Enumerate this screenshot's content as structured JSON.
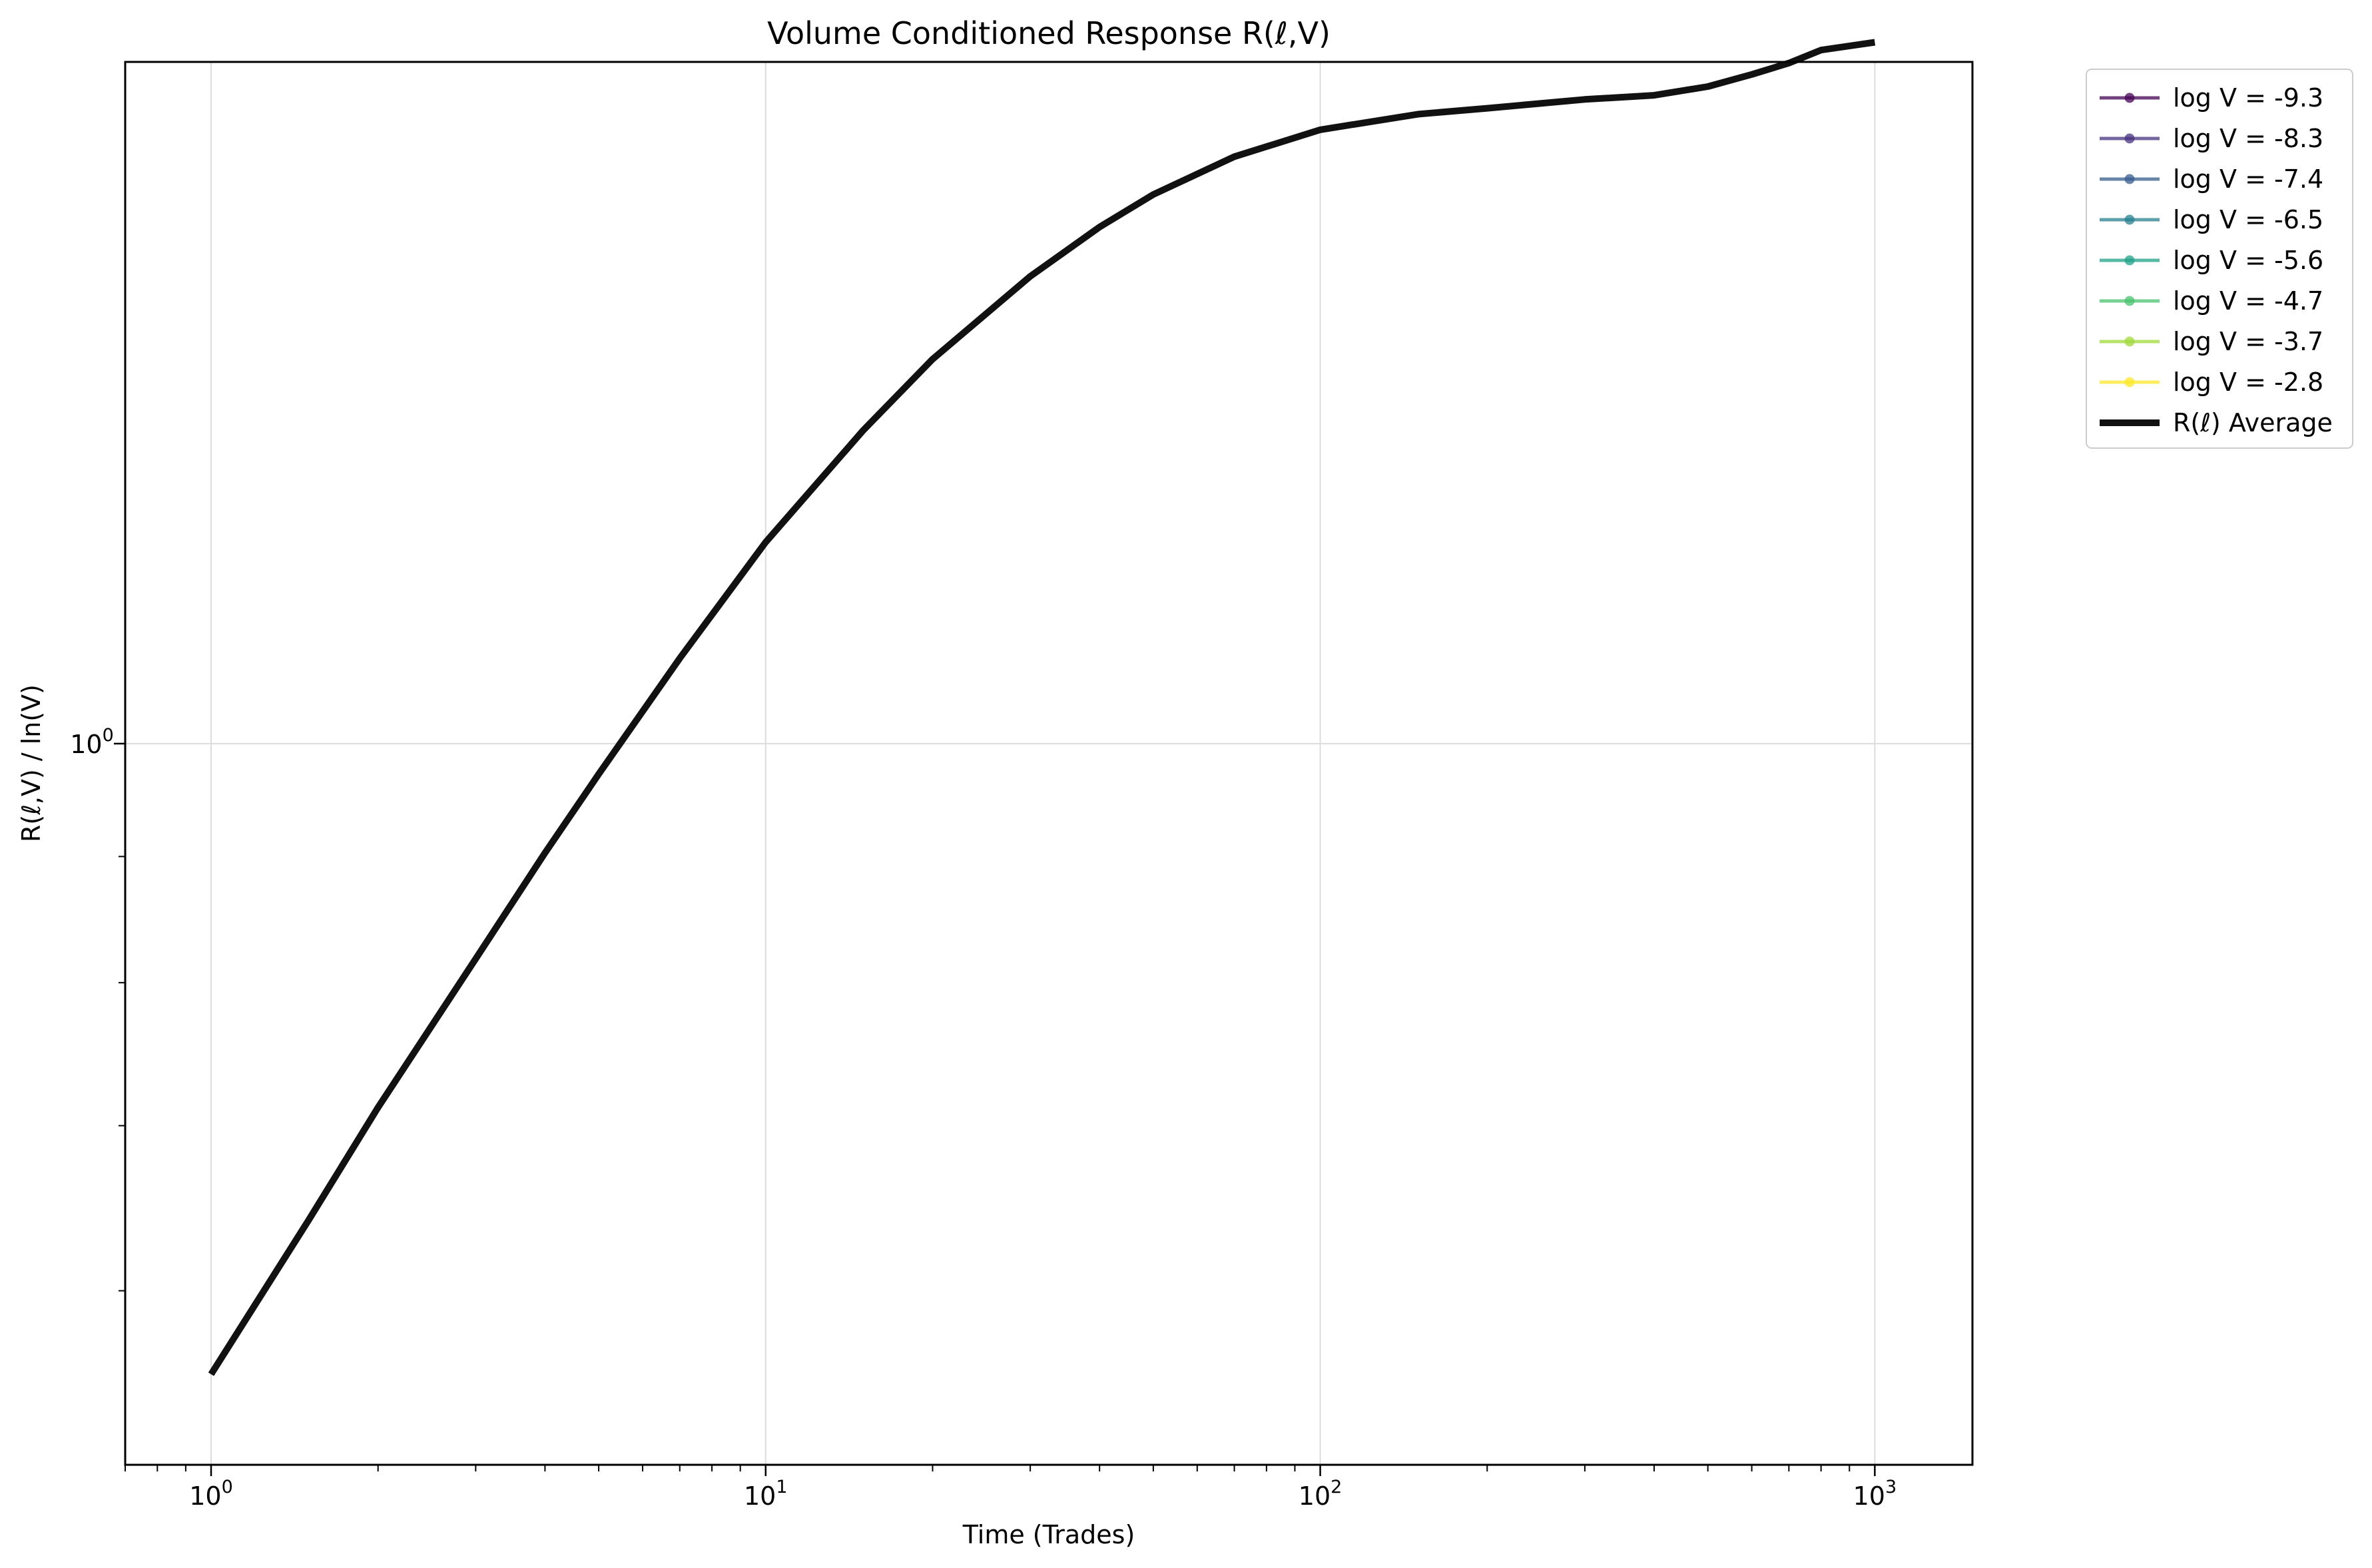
{
  "chart_data": {
    "type": "line",
    "title": "Volume Conditioned Response R(ℓ,V)",
    "xlabel": "Time (Trades)",
    "ylabel": "R(ℓ,V) / ln(V)",
    "xscale": "log",
    "yscale": "log",
    "xlim": [
      0.7,
      1500
    ],
    "ylim": [
      0.51,
      1.89
    ],
    "grid": true,
    "legend_position": "outside top-right",
    "x_ticks": [
      {
        "value": 1,
        "base": "10",
        "exp": "0"
      },
      {
        "value": 10,
        "base": "10",
        "exp": "1"
      },
      {
        "value": 100,
        "base": "10",
        "exp": "2"
      },
      {
        "value": 1000,
        "base": "10",
        "exp": "3"
      }
    ],
    "y_ticks": [
      {
        "value": 1,
        "base": "10",
        "exp": "0"
      }
    ],
    "series": [
      {
        "name": "log V = -9.3",
        "color": "#440154",
        "values": []
      },
      {
        "name": "log V = -8.3",
        "color": "#46327e",
        "values": []
      },
      {
        "name": "log V = -7.4",
        "color": "#365c8d",
        "values": []
      },
      {
        "name": "log V = -6.5",
        "color": "#277f8e",
        "values": []
      },
      {
        "name": "log V = -5.6",
        "color": "#1fa187",
        "values": []
      },
      {
        "name": "log V = -4.7",
        "color": "#4ac16d",
        "values": []
      },
      {
        "name": "log V = -3.7",
        "color": "#a0da39",
        "values": []
      },
      {
        "name": "log V = -2.8",
        "color": "#fde725",
        "values": []
      },
      {
        "name": "R(ℓ) Average",
        "color": "#111111",
        "x": [
          1,
          1.5,
          2,
          3,
          4,
          5,
          7,
          10,
          15,
          20,
          30,
          40,
          50,
          70,
          100,
          150,
          200,
          300,
          400,
          500,
          600,
          700,
          800,
          1000
        ],
        "values": [
          0.555,
          0.641,
          0.712,
          0.818,
          0.903,
          0.972,
          1.083,
          1.207,
          1.34,
          1.432,
          1.547,
          1.62,
          1.67,
          1.73,
          1.774,
          1.8,
          1.81,
          1.825,
          1.832,
          1.847,
          1.868,
          1.888,
          1.911,
          1.925
        ]
      }
    ]
  }
}
